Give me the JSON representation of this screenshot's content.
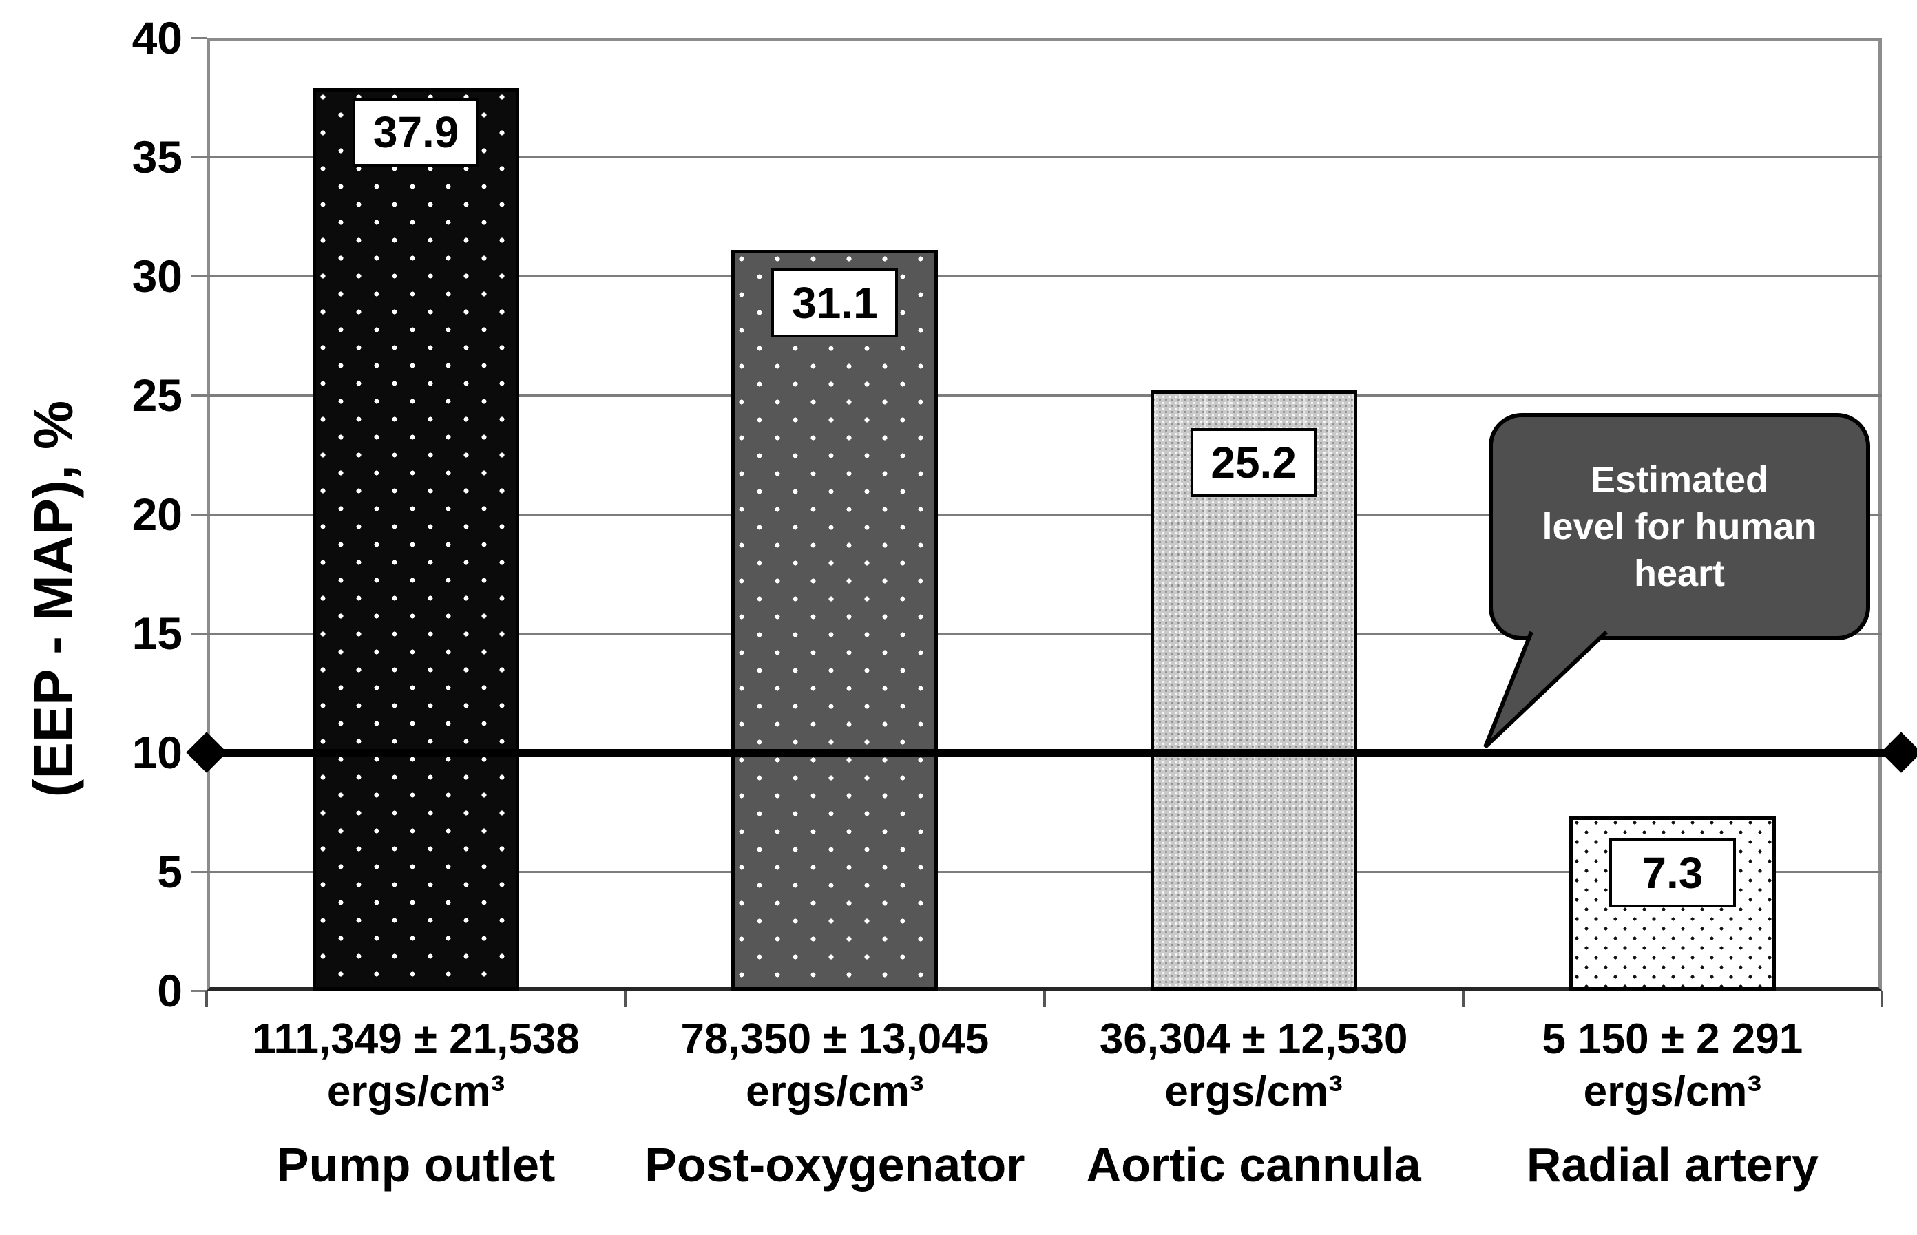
{
  "chart_data": {
    "type": "bar",
    "title": "",
    "ylabel": "(EEP - MAP), %",
    "xlabel": "",
    "ylim": [
      0,
      40
    ],
    "yticks": [
      0,
      5,
      10,
      15,
      20,
      25,
      30,
      35,
      40
    ],
    "ytick_labels": [
      "0",
      "5",
      "10",
      "15",
      "20",
      "25",
      "30",
      "35",
      "40"
    ],
    "grid": true,
    "legend": false,
    "categories": [
      "Pump outlet",
      "Post-oxygenator",
      "Aortic cannula",
      "Radial artery"
    ],
    "category_energy_labels": [
      "111,349 ± 21,538",
      "78,350 ± 13,045",
      "36,304 ± 12,530",
      "5 150 ± 2 291"
    ],
    "category_unit": "ergs/cm³",
    "values": [
      37.9,
      31.1,
      25.2,
      7.3
    ],
    "value_labels": [
      "37.9",
      "31.1",
      "25.2",
      "7.3"
    ],
    "bar_patterns": [
      "black-white-dots",
      "darkgray-white-dots",
      "lightgray-weave",
      "white-black-dots"
    ],
    "threshold_line": {
      "value": 10,
      "style": "thick-black-line-with-diamond-ends"
    },
    "callout": {
      "text": "Estimated level for human heart",
      "lines": [
        "Estimated",
        "level for human",
        "heart"
      ],
      "fill": "#4f4f4f",
      "text_color": "#ffffff",
      "points_to_value": 10
    }
  },
  "colors": {
    "background": "#ffffff",
    "gridline": "#7d7d7d",
    "axis_frame": "#8c8c8c",
    "bottom_axis": "#262626",
    "bar_border": "#000000",
    "threshold": "#000000",
    "callout_fill": "#4f4f4f"
  }
}
